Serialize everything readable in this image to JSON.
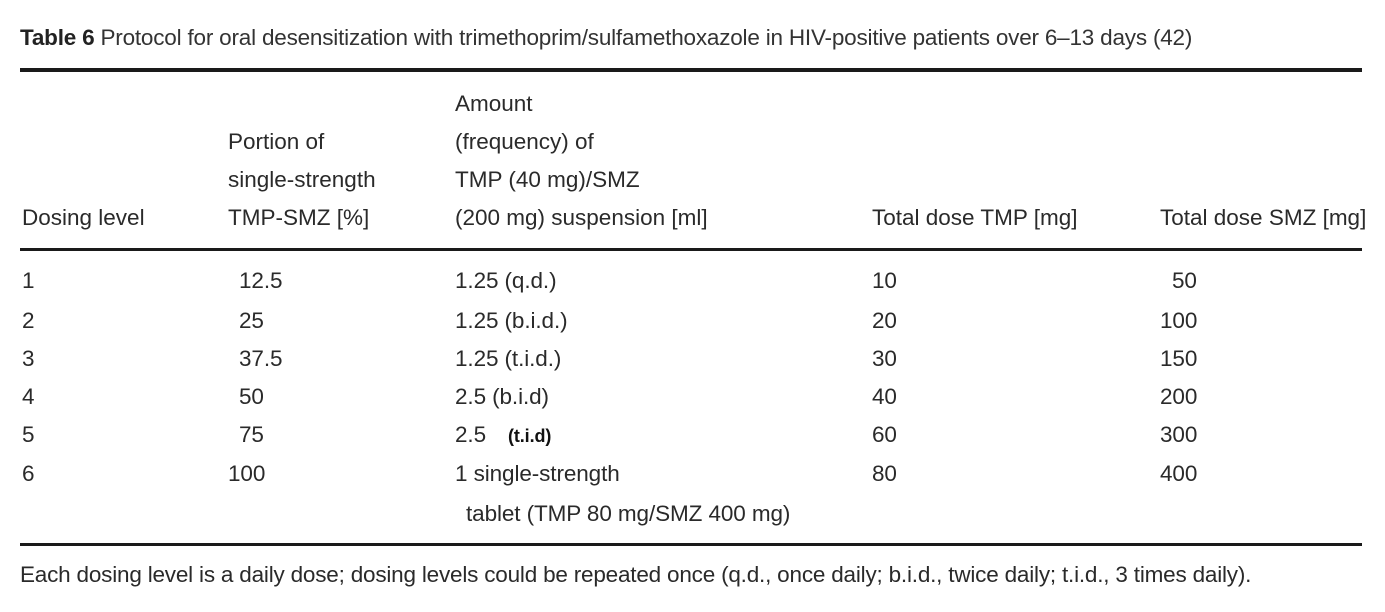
{
  "caption": {
    "label": "Table 6",
    "text": "Protocol for oral desensitization with trimethoprim/sulfamethoxazole in HIV-positive patients over 6–13 days (42)"
  },
  "headers": {
    "dosing_level": [
      "Dosing level"
    ],
    "portion": [
      "Portion of",
      "single-strength",
      "TMP-SMZ [%]"
    ],
    "amount": [
      "Amount",
      "(frequency) of",
      "TMP (40 mg)/SMZ",
      "(200 mg) suspension [ml]"
    ],
    "total_tmp": [
      "Total dose TMP [mg]"
    ],
    "total_smz": [
      "Total dose SMZ [mg]"
    ]
  },
  "rows": [
    {
      "level": "1",
      "portion": "12.5",
      "amount": "1.25 (q.d.)",
      "amount_note": "",
      "amount_line2": "",
      "tmp": "10",
      "smz": "50"
    },
    {
      "level": "2",
      "portion": "25",
      "amount": "1.25 (b.i.d.)",
      "amount_note": "",
      "amount_line2": "",
      "tmp": "20",
      "smz": "100"
    },
    {
      "level": "3",
      "portion": "37.5",
      "amount": "1.25 (t.i.d.)",
      "amount_note": "",
      "amount_line2": "",
      "tmp": "30",
      "smz": "150"
    },
    {
      "level": "4",
      "portion": "50",
      "amount": "2.5 (b.i.d)",
      "amount_note": "",
      "amount_line2": "",
      "tmp": "40",
      "smz": "200"
    },
    {
      "level": "5",
      "portion": "75",
      "amount": "2.5",
      "amount_note": "(t.i.d)",
      "amount_line2": "",
      "tmp": "60",
      "smz": "300"
    },
    {
      "level": "6",
      "portion": "100",
      "amount": "1 single-strength",
      "amount_note": "",
      "amount_line2": "tablet (TMP 80 mg/SMZ 400 mg)",
      "tmp": "80",
      "smz": "400"
    }
  ],
  "footnote": "Each dosing level is a daily dose; dosing levels could be repeated once (q.d., once daily; b.i.d., twice daily; t.i.d., 3 times daily)."
}
